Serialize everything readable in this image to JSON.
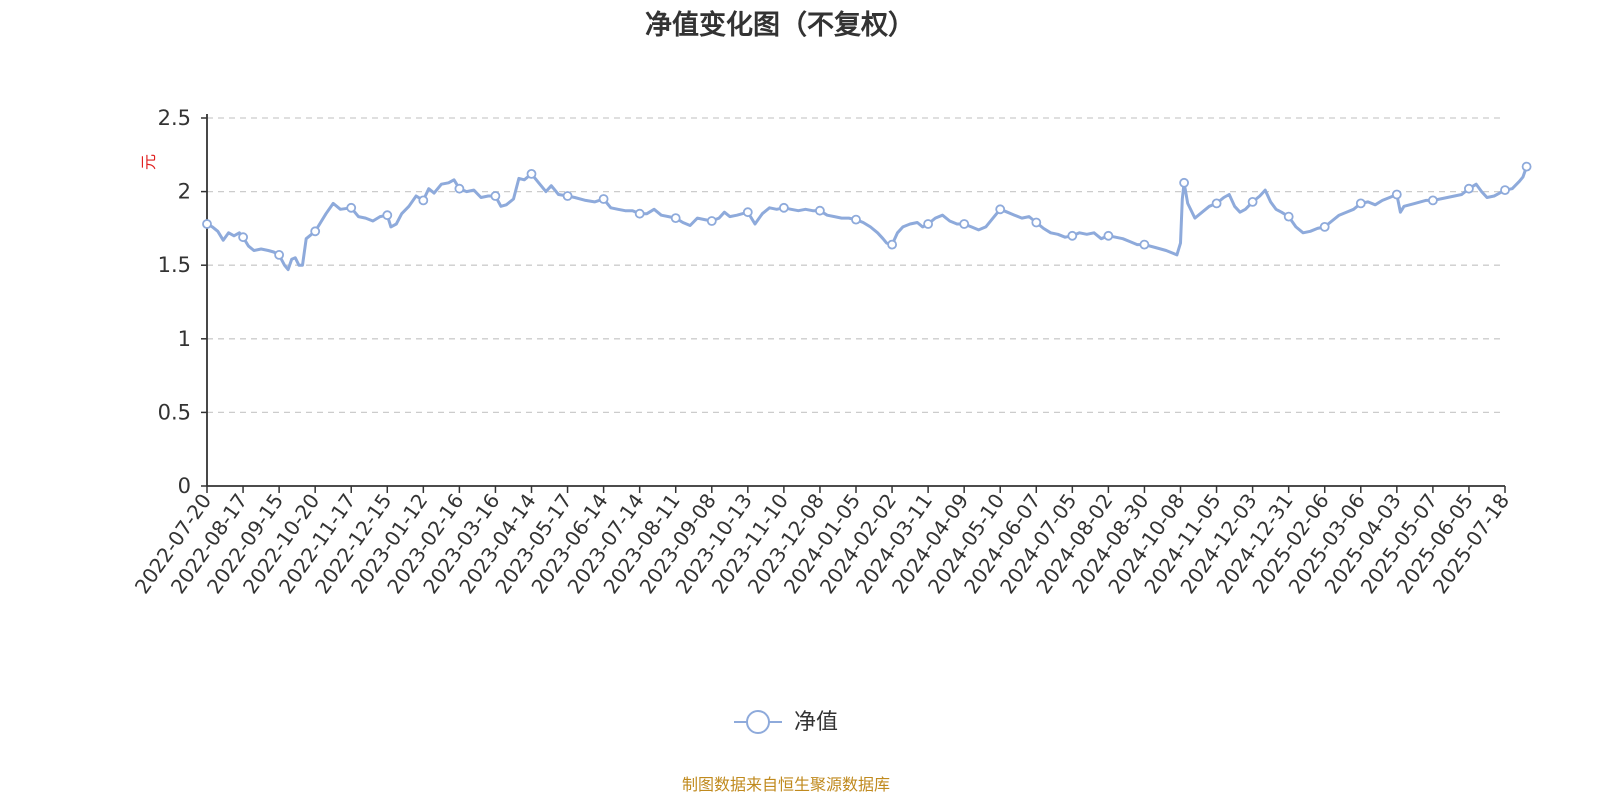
{
  "colors": {
    "line": "#8eaadb",
    "axis": "#333333",
    "grid": "#cccccc",
    "unit": "#e02020",
    "source": "#c08a1e"
  },
  "chart_data": {
    "type": "line",
    "title": "净值变化图（不复权）",
    "ylabel": "元",
    "ylim": [
      0,
      2.5
    ],
    "yticks": [
      0,
      0.5,
      1,
      1.5,
      2,
      2.5
    ],
    "ytick_labels": [
      "0",
      "0.5",
      "1",
      "1.5",
      "2",
      "2.5"
    ],
    "grid": true,
    "legend_position": "bottom-center",
    "categories": [
      "2022-07-20",
      "2022-08-17",
      "2022-09-15",
      "2022-10-20",
      "2022-11-17",
      "2022-12-15",
      "2023-01-12",
      "2023-02-16",
      "2023-03-16",
      "2023-04-14",
      "2023-05-17",
      "2023-06-14",
      "2023-07-14",
      "2023-08-11",
      "2023-09-08",
      "2023-10-13",
      "2023-11-10",
      "2023-12-08",
      "2024-01-05",
      "2024-02-02",
      "2024-03-11",
      "2024-04-09",
      "2024-05-10",
      "2024-06-07",
      "2024-07-05",
      "2024-08-02",
      "2024-08-30",
      "2024-10-08",
      "2024-11-05",
      "2024-12-03",
      "2024-12-31",
      "2025-02-06",
      "2025-03-06",
      "2025-04-03",
      "2025-05-07",
      "2025-06-05",
      "2025-07-18"
    ],
    "series": [
      {
        "name": "净值",
        "points": [
          [
            0,
            1.78
          ],
          [
            0.15,
            1.76
          ],
          [
            0.3,
            1.73
          ],
          [
            0.45,
            1.67
          ],
          [
            0.6,
            1.72
          ],
          [
            0.75,
            1.7
          ],
          [
            0.9,
            1.72
          ],
          [
            1,
            1.69
          ],
          [
            1.15,
            1.63
          ],
          [
            1.3,
            1.6
          ],
          [
            1.5,
            1.61
          ],
          [
            1.7,
            1.6
          ],
          [
            1.85,
            1.59
          ],
          [
            2,
            1.57
          ],
          [
            2.15,
            1.5
          ],
          [
            2.25,
            1.47
          ],
          [
            2.35,
            1.54
          ],
          [
            2.45,
            1.55
          ],
          [
            2.55,
            1.5
          ],
          [
            2.65,
            1.5
          ],
          [
            2.75,
            1.68
          ],
          [
            3,
            1.73
          ],
          [
            3.15,
            1.79
          ],
          [
            3.3,
            1.85
          ],
          [
            3.5,
            1.92
          ],
          [
            3.7,
            1.88
          ],
          [
            4,
            1.89
          ],
          [
            4.2,
            1.83
          ],
          [
            4.4,
            1.82
          ],
          [
            4.6,
            1.8
          ],
          [
            4.8,
            1.83
          ],
          [
            5,
            1.84
          ],
          [
            5.1,
            1.76
          ],
          [
            5.25,
            1.78
          ],
          [
            5.4,
            1.85
          ],
          [
            5.6,
            1.9
          ],
          [
            5.8,
            1.97
          ],
          [
            6,
            1.94
          ],
          [
            6.15,
            2.02
          ],
          [
            6.3,
            1.99
          ],
          [
            6.5,
            2.05
          ],
          [
            6.7,
            2.06
          ],
          [
            6.85,
            2.08
          ],
          [
            7,
            2.02
          ],
          [
            7.2,
            2.0
          ],
          [
            7.4,
            2.01
          ],
          [
            7.6,
            1.96
          ],
          [
            7.8,
            1.97
          ],
          [
            8,
            1.97
          ],
          [
            8.15,
            1.9
          ],
          [
            8.3,
            1.91
          ],
          [
            8.5,
            1.95
          ],
          [
            8.65,
            2.09
          ],
          [
            8.8,
            2.08
          ],
          [
            9,
            2.12
          ],
          [
            9.2,
            2.06
          ],
          [
            9.4,
            2.0
          ],
          [
            9.55,
            2.04
          ],
          [
            9.75,
            1.98
          ],
          [
            10,
            1.97
          ],
          [
            10.2,
            1.96
          ],
          [
            10.5,
            1.94
          ],
          [
            10.75,
            1.93
          ],
          [
            11,
            1.95
          ],
          [
            11.2,
            1.89
          ],
          [
            11.4,
            1.88
          ],
          [
            11.6,
            1.87
          ],
          [
            11.8,
            1.87
          ],
          [
            12,
            1.85
          ],
          [
            12.2,
            1.85
          ],
          [
            12.4,
            1.88
          ],
          [
            12.6,
            1.84
          ],
          [
            12.8,
            1.83
          ],
          [
            13,
            1.82
          ],
          [
            13.2,
            1.79
          ],
          [
            13.4,
            1.77
          ],
          [
            13.6,
            1.82
          ],
          [
            13.8,
            1.81
          ],
          [
            14,
            1.8
          ],
          [
            14.2,
            1.82
          ],
          [
            14.35,
            1.86
          ],
          [
            14.5,
            1.83
          ],
          [
            14.7,
            1.84
          ],
          [
            14.85,
            1.85
          ],
          [
            15,
            1.86
          ],
          [
            15.2,
            1.78
          ],
          [
            15.4,
            1.85
          ],
          [
            15.6,
            1.89
          ],
          [
            15.8,
            1.88
          ],
          [
            16,
            1.89
          ],
          [
            16.2,
            1.88
          ],
          [
            16.4,
            1.87
          ],
          [
            16.6,
            1.88
          ],
          [
            16.8,
            1.87
          ],
          [
            17,
            1.87
          ],
          [
            17.2,
            1.84
          ],
          [
            17.4,
            1.83
          ],
          [
            17.6,
            1.82
          ],
          [
            17.8,
            1.82
          ],
          [
            18,
            1.81
          ],
          [
            18.2,
            1.79
          ],
          [
            18.4,
            1.76
          ],
          [
            18.6,
            1.72
          ],
          [
            18.75,
            1.68
          ],
          [
            18.85,
            1.65
          ],
          [
            19,
            1.64
          ],
          [
            19.15,
            1.72
          ],
          [
            19.3,
            1.76
          ],
          [
            19.5,
            1.78
          ],
          [
            19.7,
            1.79
          ],
          [
            19.85,
            1.76
          ],
          [
            20,
            1.78
          ],
          [
            20.2,
            1.82
          ],
          [
            20.4,
            1.84
          ],
          [
            20.6,
            1.8
          ],
          [
            20.8,
            1.78
          ],
          [
            21,
            1.78
          ],
          [
            21.2,
            1.76
          ],
          [
            21.4,
            1.74
          ],
          [
            21.6,
            1.76
          ],
          [
            21.8,
            1.82
          ],
          [
            22,
            1.88
          ],
          [
            22.2,
            1.86
          ],
          [
            22.4,
            1.84
          ],
          [
            22.6,
            1.82
          ],
          [
            22.8,
            1.83
          ],
          [
            23,
            1.79
          ],
          [
            23.2,
            1.75
          ],
          [
            23.4,
            1.72
          ],
          [
            23.6,
            1.71
          ],
          [
            23.8,
            1.69
          ],
          [
            24,
            1.7
          ],
          [
            24.2,
            1.72
          ],
          [
            24.4,
            1.71
          ],
          [
            24.6,
            1.72
          ],
          [
            24.8,
            1.68
          ],
          [
            25,
            1.7
          ],
          [
            25.2,
            1.69
          ],
          [
            25.4,
            1.68
          ],
          [
            25.6,
            1.66
          ],
          [
            25.8,
            1.64
          ],
          [
            26,
            1.64
          ],
          [
            26.3,
            1.62
          ],
          [
            26.6,
            1.6
          ],
          [
            26.8,
            1.58
          ],
          [
            26.9,
            1.57
          ],
          [
            27,
            1.65
          ],
          [
            27.05,
            1.95
          ],
          [
            27.1,
            2.06
          ],
          [
            27.2,
            1.92
          ],
          [
            27.4,
            1.82
          ],
          [
            27.6,
            1.86
          ],
          [
            27.8,
            1.9
          ],
          [
            28,
            1.92
          ],
          [
            28.2,
            1.96
          ],
          [
            28.35,
            1.98
          ],
          [
            28.5,
            1.9
          ],
          [
            28.65,
            1.86
          ],
          [
            28.8,
            1.88
          ],
          [
            29,
            1.93
          ],
          [
            29.2,
            1.97
          ],
          [
            29.35,
            2.01
          ],
          [
            29.5,
            1.93
          ],
          [
            29.65,
            1.88
          ],
          [
            29.8,
            1.86
          ],
          [
            30,
            1.83
          ],
          [
            30.2,
            1.76
          ],
          [
            30.4,
            1.72
          ],
          [
            30.6,
            1.73
          ],
          [
            30.8,
            1.75
          ],
          [
            31,
            1.76
          ],
          [
            31.2,
            1.8
          ],
          [
            31.4,
            1.84
          ],
          [
            31.6,
            1.86
          ],
          [
            31.8,
            1.88
          ],
          [
            32,
            1.92
          ],
          [
            32.2,
            1.93
          ],
          [
            32.4,
            1.91
          ],
          [
            32.6,
            1.94
          ],
          [
            32.8,
            1.96
          ],
          [
            33,
            1.98
          ],
          [
            33.1,
            1.86
          ],
          [
            33.2,
            1.9
          ],
          [
            33.5,
            1.92
          ],
          [
            33.8,
            1.94
          ],
          [
            34,
            1.94
          ],
          [
            34.2,
            1.95
          ],
          [
            34.4,
            1.96
          ],
          [
            34.6,
            1.97
          ],
          [
            34.8,
            1.98
          ],
          [
            35,
            2.02
          ],
          [
            35.2,
            2.05
          ],
          [
            35.35,
            2.0
          ],
          [
            35.5,
            1.96
          ],
          [
            35.7,
            1.97
          ],
          [
            35.85,
            1.99
          ],
          [
            36,
            2.01
          ],
          [
            36.2,
            2.02
          ],
          [
            36.4,
            2.07
          ],
          [
            36.5,
            2.1
          ],
          [
            36.6,
            2.17
          ]
        ],
        "markers": [
          [
            0,
            1.78
          ],
          [
            1,
            1.69
          ],
          [
            2,
            1.57
          ],
          [
            3,
            1.73
          ],
          [
            4,
            1.89
          ],
          [
            5,
            1.84
          ],
          [
            6,
            1.94
          ],
          [
            7,
            2.02
          ],
          [
            8,
            1.97
          ],
          [
            9,
            2.12
          ],
          [
            10,
            1.97
          ],
          [
            11,
            1.95
          ],
          [
            12,
            1.85
          ],
          [
            13,
            1.82
          ],
          [
            14,
            1.8
          ],
          [
            15,
            1.86
          ],
          [
            16,
            1.89
          ],
          [
            17,
            1.87
          ],
          [
            18,
            1.81
          ],
          [
            19,
            1.64
          ],
          [
            20,
            1.78
          ],
          [
            21,
            1.78
          ],
          [
            22,
            1.88
          ],
          [
            23,
            1.79
          ],
          [
            24,
            1.7
          ],
          [
            25,
            1.7
          ],
          [
            26,
            1.64
          ],
          [
            27.1,
            2.06
          ],
          [
            28,
            1.92
          ],
          [
            29,
            1.93
          ],
          [
            30,
            1.83
          ],
          [
            31,
            1.76
          ],
          [
            32,
            1.92
          ],
          [
            33,
            1.98
          ],
          [
            34,
            1.94
          ],
          [
            35,
            2.02
          ],
          [
            36,
            2.01
          ],
          [
            36.6,
            2.17
          ]
        ]
      }
    ],
    "source_note": "制图数据来自恒生聚源数据库"
  }
}
